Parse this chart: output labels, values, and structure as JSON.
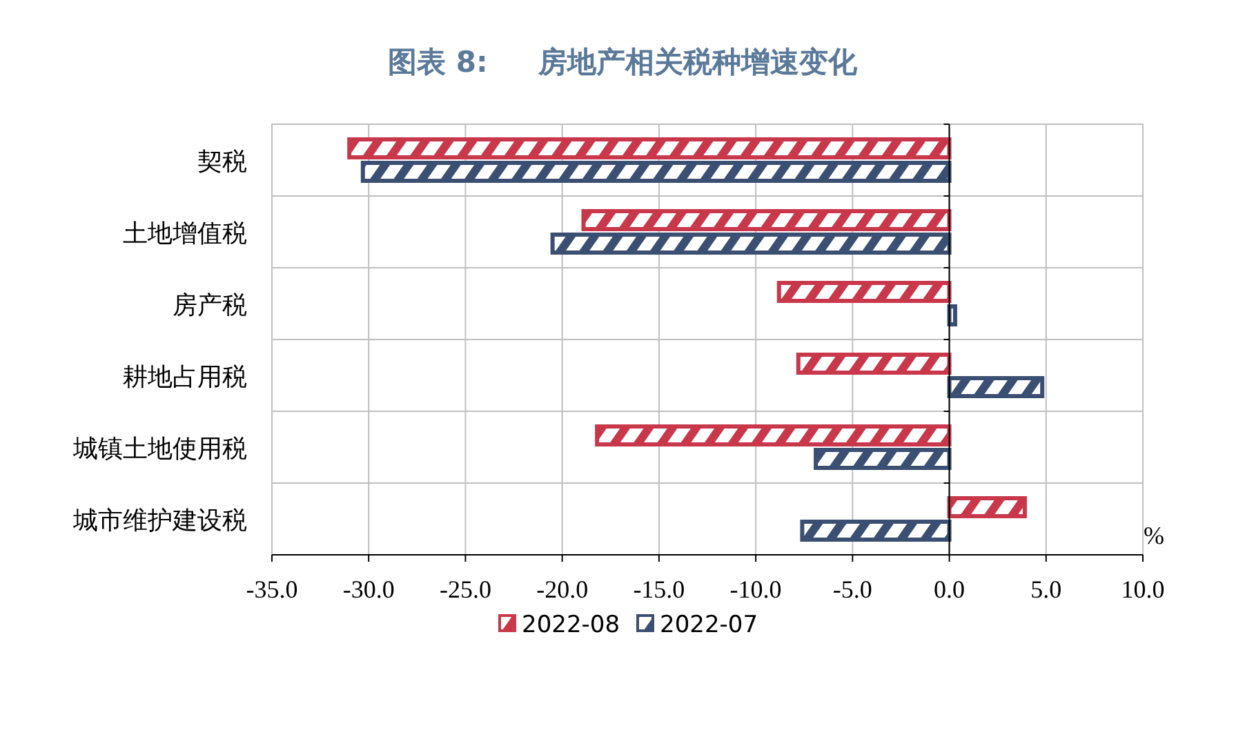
{
  "chart_data": {
    "type": "bar",
    "orientation": "horizontal",
    "title": "图表 8:     房地产相关税种增速变化",
    "xlabel": "%",
    "categories": [
      "契税",
      "土地增值税",
      "房产税",
      "耕地占用税",
      "城镇土地使用税",
      "城市维护建设税"
    ],
    "series": [
      {
        "name": "2022-08",
        "color": "#c8374a",
        "values": [
          -31.0,
          -18.9,
          -8.8,
          -7.8,
          -18.2,
          3.9
        ]
      },
      {
        "name": "2022-07",
        "color": "#3b4f72",
        "values": [
          -30.3,
          -20.5,
          0.3,
          4.8,
          -6.9,
          -7.6
        ]
      }
    ],
    "xlim": [
      -35,
      10
    ],
    "xticks": [
      {
        "value": -35,
        "label": "-35.0"
      },
      {
        "value": -30,
        "label": "-30.0"
      },
      {
        "value": -25,
        "label": "-25.0"
      },
      {
        "value": -20,
        "label": "-20.0"
      },
      {
        "value": -15,
        "label": "-15.0"
      },
      {
        "value": -10,
        "label": "-10.0"
      },
      {
        "value": -5,
        "label": "-5.0"
      },
      {
        "value": 0,
        "label": "0.0"
      },
      {
        "value": 5,
        "label": "5.0"
      },
      {
        "value": 10,
        "label": "10.0"
      }
    ],
    "grid": true,
    "legend": "bottom"
  }
}
